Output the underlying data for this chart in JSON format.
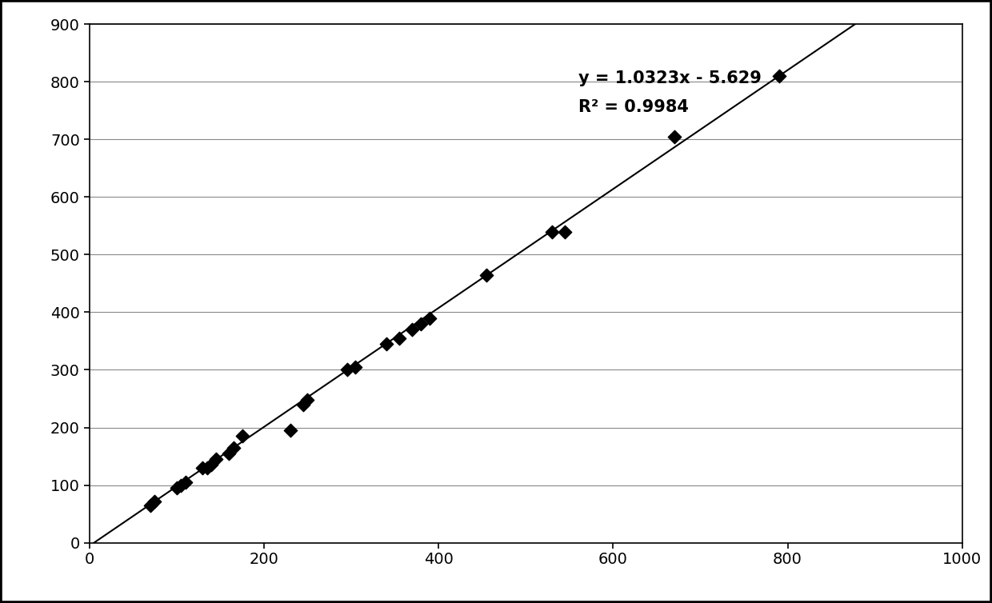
{
  "scatter_x": [
    70,
    75,
    100,
    105,
    110,
    130,
    135,
    140,
    145,
    160,
    165,
    175,
    230,
    245,
    250,
    295,
    305,
    340,
    355,
    370,
    380,
    390,
    455,
    530,
    545,
    670,
    790
  ],
  "scatter_y": [
    65,
    72,
    95,
    100,
    105,
    130,
    130,
    135,
    145,
    155,
    165,
    185,
    195,
    240,
    248,
    300,
    305,
    345,
    355,
    370,
    380,
    390,
    465,
    540,
    540,
    705,
    810
  ],
  "equation": "y = 1.0323x - 5.629",
  "r_squared": "R² = 0.9984",
  "slope": 1.0323,
  "intercept": -5.629,
  "eq_x": 560,
  "eq_y": 820,
  "r2_x": 560,
  "r2_y": 770,
  "xlim": [
    0,
    1000
  ],
  "ylim": [
    0,
    900
  ],
  "xticks": [
    0,
    200,
    400,
    600,
    800,
    1000
  ],
  "yticks": [
    0,
    100,
    200,
    300,
    400,
    500,
    600,
    700,
    800,
    900
  ],
  "marker_color": "#000000",
  "line_color": "#000000",
  "bg_color": "#ffffff",
  "grid_color": "#888888",
  "eq_fontsize": 15,
  "tick_fontsize": 14
}
